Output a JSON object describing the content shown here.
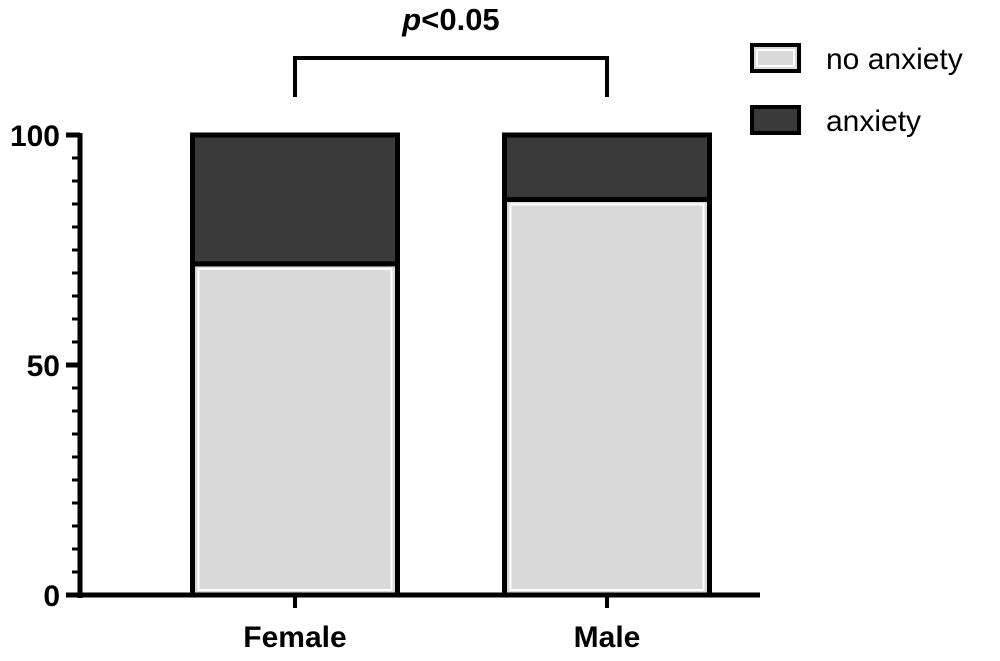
{
  "chart_data": {
    "type": "bar",
    "stacked": true,
    "categories": [
      "Female",
      "Male"
    ],
    "series": [
      {
        "name": "no anxiety",
        "values": [
          72,
          86
        ],
        "color": "#d9d9d9"
      },
      {
        "name": "anxiety",
        "values": [
          28,
          14
        ],
        "color": "#3a3a3a"
      }
    ],
    "ylim": [
      0,
      100
    ],
    "yticks": [
      0,
      50,
      100
    ],
    "ytick_labels": [
      "0",
      "50",
      "100"
    ],
    "minor_tick_step": 5,
    "annotation": {
      "p_italic": "p",
      "rest": "<0.05",
      "between": [
        "Female",
        "Male"
      ]
    },
    "legend": {
      "position": "top-right",
      "entries": [
        "no anxiety",
        "anxiety"
      ]
    },
    "grid": false
  }
}
